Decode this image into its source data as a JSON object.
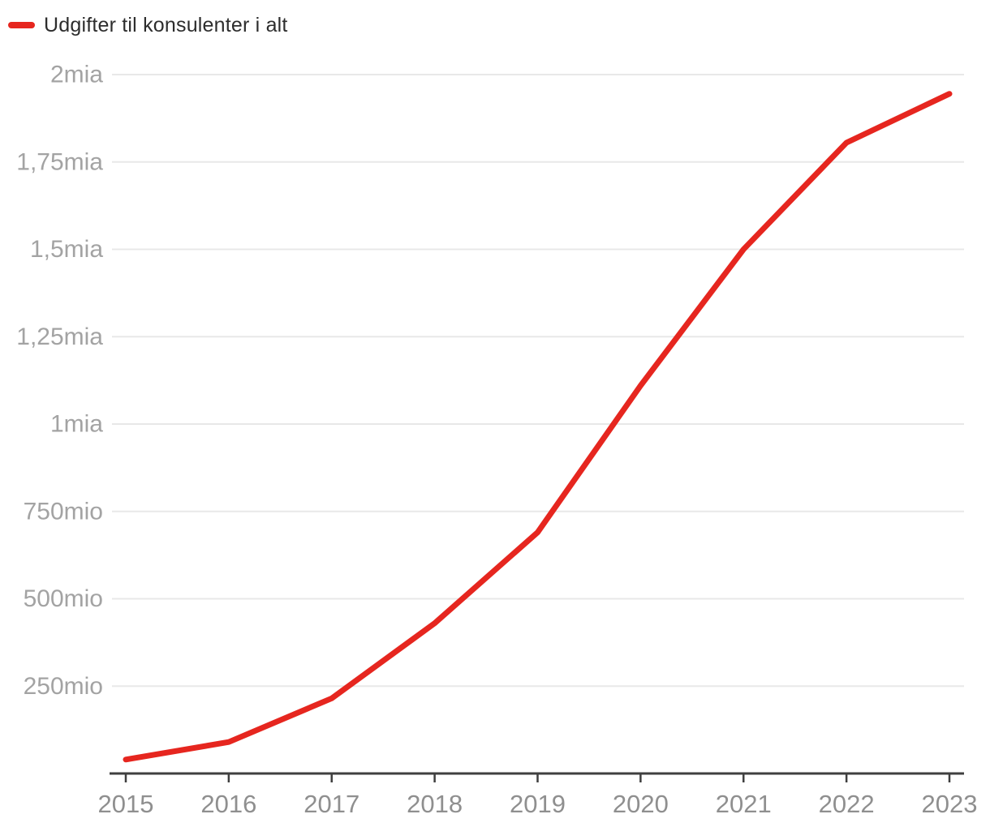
{
  "legend": {
    "label": "Udgifter til konsulenter i alt"
  },
  "colors": {
    "line": "#e6261f",
    "grid": "#e8e8e8",
    "axis": "#3f3f3f",
    "x_label": "#8f8f8f",
    "y_label": "#a3a3a3",
    "legend_text": "#2d2d2d",
    "background": "#ffffff"
  },
  "chart_data": {
    "type": "line",
    "title": "",
    "x": [
      "2015",
      "2016",
      "2017",
      "2018",
      "2019",
      "2020",
      "2021",
      "2022",
      "2023"
    ],
    "series": [
      {
        "name": "Udgifter til konsulenter i alt",
        "values_mio": [
          40,
          90,
          215,
          430,
          690,
          1110,
          1500,
          1805,
          1945
        ]
      }
    ],
    "y_ticks": [
      {
        "value_mio": 2000,
        "label": "2mia"
      },
      {
        "value_mio": 1750,
        "label": "1,75mia"
      },
      {
        "value_mio": 1500,
        "label": "1,5mia"
      },
      {
        "value_mio": 1250,
        "label": "1,25mia"
      },
      {
        "value_mio": 1000,
        "label": "1mia"
      },
      {
        "value_mio": 750,
        "label": "750mio"
      },
      {
        "value_mio": 500,
        "label": "500mio"
      },
      {
        "value_mio": 250,
        "label": "250mio"
      }
    ],
    "ylim_mio": [
      0,
      2000
    ],
    "grid": "horizontal",
    "legend_position": "top-left"
  }
}
